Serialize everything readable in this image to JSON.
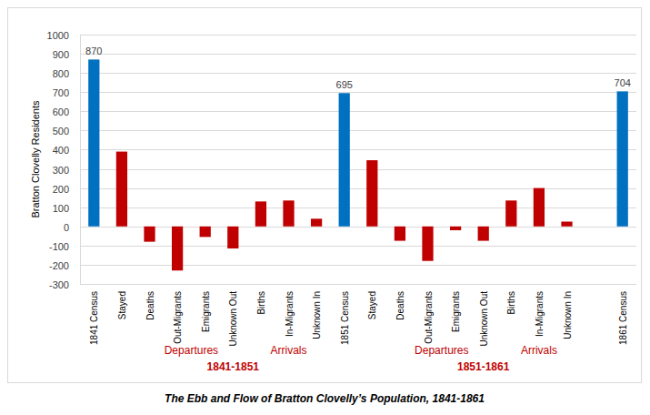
{
  "chart_data": {
    "type": "bar",
    "title": "The Ebb and Flow of Bratton Clovelly’s Population, 1841-1861",
    "y_label": "Bratton Clovelly Residents",
    "categories": [
      "1841 Census",
      "Stayed",
      "Deaths",
      "Out-Migrants",
      "Emigrants",
      "Unknown Out",
      "Births",
      "In-Migrants",
      "Unknown In",
      "1851 Census",
      "Stayed",
      "Deaths",
      "Out-Migrants",
      "Emigrants",
      "Unknown Out",
      "Births",
      "In-Migrants",
      "Unknown In",
      null,
      "1861 Census"
    ],
    "values": [
      870,
      390,
      -80,
      -230,
      -55,
      -115,
      130,
      135,
      40,
      695,
      345,
      -75,
      -180,
      -20,
      -75,
      135,
      200,
      25,
      null,
      704
    ],
    "colors": [
      "#0070c0",
      "#c00000",
      "#c00000",
      "#c00000",
      "#c00000",
      "#c00000",
      "#c00000",
      "#c00000",
      "#c00000",
      "#0070c0",
      "#c00000",
      "#c00000",
      "#c00000",
      "#c00000",
      "#c00000",
      "#c00000",
      "#c00000",
      "#c00000",
      null,
      "#0070c0"
    ],
    "value_labels": [
      "870",
      null,
      null,
      null,
      null,
      null,
      null,
      null,
      null,
      "695",
      null,
      null,
      null,
      null,
      null,
      null,
      null,
      null,
      null,
      "704"
    ],
    "annotations": [
      "Departures",
      "Arrivals",
      "1841-1851",
      "Departures",
      "Arrivals",
      "1851-1861"
    ],
    "ylim": [
      -300,
      1000
    ],
    "yticks": [
      -300,
      -200,
      -100,
      0,
      100,
      200,
      300,
      400,
      500,
      600,
      700,
      800,
      900,
      1000
    ],
    "grid": true,
    "data_labels": true
  }
}
